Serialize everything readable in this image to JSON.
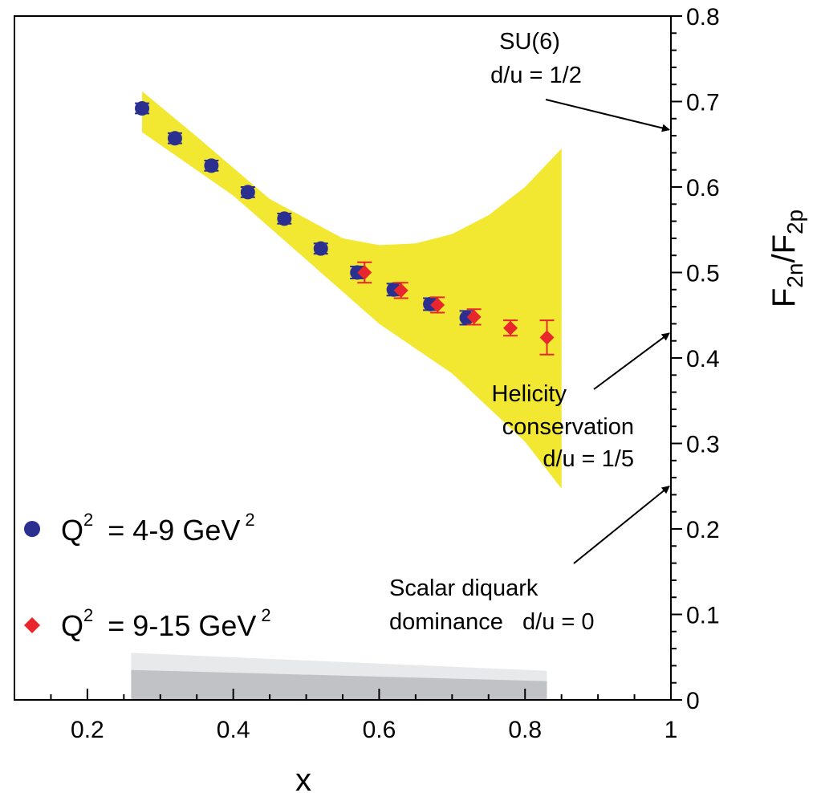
{
  "chart_data": {
    "type": "scatter",
    "title": "",
    "xlabel": "x",
    "ylabel": {
      "base": "F",
      "sub1": "2n",
      "sep": "/F",
      "sub2": "2p"
    },
    "xlim": [
      0.1,
      1.0
    ],
    "ylim": [
      0,
      0.8
    ],
    "x_ticks": [
      "0.2",
      "0.4",
      "0.6",
      "0.8",
      "1"
    ],
    "x_tick_values": [
      0.2,
      0.4,
      0.6,
      0.8,
      1.0
    ],
    "y_ticks": [
      "0",
      "0.1",
      "0.2",
      "0.3",
      "0.4",
      "0.5",
      "0.6",
      "0.7",
      "0.8"
    ],
    "y_tick_values": [
      0,
      0.1,
      0.2,
      0.3,
      0.4,
      0.5,
      0.6,
      0.7,
      0.8
    ],
    "grid": false,
    "legend_position": "left",
    "series": [
      {
        "name": "Q2 = 4-9 GeV2",
        "legend": {
          "main": "Q",
          "sup": "2",
          "rest": "= 4-9 GeV",
          "sup2": "2"
        },
        "marker": "circle",
        "color": "#2b2f8f",
        "points": [
          {
            "x": 0.275,
            "y": 0.692,
            "err": 0.006
          },
          {
            "x": 0.32,
            "y": 0.657,
            "err": 0.006
          },
          {
            "x": 0.37,
            "y": 0.625,
            "err": 0.006
          },
          {
            "x": 0.42,
            "y": 0.594,
            "err": 0.006
          },
          {
            "x": 0.47,
            "y": 0.563,
            "err": 0.006
          },
          {
            "x": 0.52,
            "y": 0.528,
            "err": 0.006
          },
          {
            "x": 0.57,
            "y": 0.5,
            "err": 0.007
          },
          {
            "x": 0.62,
            "y": 0.48,
            "err": 0.007
          },
          {
            "x": 0.67,
            "y": 0.463,
            "err": 0.007
          },
          {
            "x": 0.72,
            "y": 0.447,
            "err": 0.008
          }
        ]
      },
      {
        "name": "Q2 = 9-15 GeV2",
        "legend": {
          "main": "Q",
          "sup": "2",
          "rest": "= 9-15 GeV",
          "sup2": "2"
        },
        "marker": "diamond",
        "color": "#e8262b",
        "points": [
          {
            "x": 0.58,
            "y": 0.5,
            "err": 0.012
          },
          {
            "x": 0.63,
            "y": 0.479,
            "err": 0.009
          },
          {
            "x": 0.68,
            "y": 0.462,
            "err": 0.009
          },
          {
            "x": 0.73,
            "y": 0.448,
            "err": 0.009
          },
          {
            "x": 0.78,
            "y": 0.435,
            "err": 0.009
          },
          {
            "x": 0.83,
            "y": 0.424,
            "err": 0.02
          }
        ]
      }
    ],
    "band": {
      "color": "#f2e831",
      "upper": [
        [
          0.275,
          0.712
        ],
        [
          0.35,
          0.659
        ],
        [
          0.45,
          0.586
        ],
        [
          0.55,
          0.54
        ],
        [
          0.6,
          0.532
        ],
        [
          0.65,
          0.534
        ],
        [
          0.7,
          0.545
        ],
        [
          0.75,
          0.567
        ],
        [
          0.8,
          0.6
        ],
        [
          0.85,
          0.645
        ]
      ],
      "lower": [
        [
          0.85,
          0.247
        ],
        [
          0.8,
          0.302
        ],
        [
          0.7,
          0.382
        ],
        [
          0.6,
          0.44
        ],
        [
          0.5,
          0.515
        ],
        [
          0.4,
          0.59
        ],
        [
          0.275,
          0.664
        ]
      ]
    },
    "systematic_band": {
      "colors": [
        "#e8e9eb",
        "#c1c2c6"
      ],
      "light": [
        [
          0.26,
          0.055
        ],
        [
          0.83,
          0.034
        ],
        [
          0.83,
          0.0
        ],
        [
          0.26,
          0.0
        ]
      ],
      "dark": [
        [
          0.26,
          0.035
        ],
        [
          0.83,
          0.022
        ],
        [
          0.83,
          0.0
        ],
        [
          0.26,
          0.0
        ]
      ]
    },
    "annotations": [
      {
        "lines": [
          "SU(6)",
          "d/u = 1/2"
        ],
        "arrow_target": 0.667
      },
      {
        "lines": [
          "Helicity",
          "conservation",
          "d/u = 1/5"
        ],
        "arrow_target": 0.429
      },
      {
        "lines": [
          "Scalar diquark",
          "dominance   d/u = 0"
        ],
        "arrow_target": 0.25
      }
    ]
  }
}
